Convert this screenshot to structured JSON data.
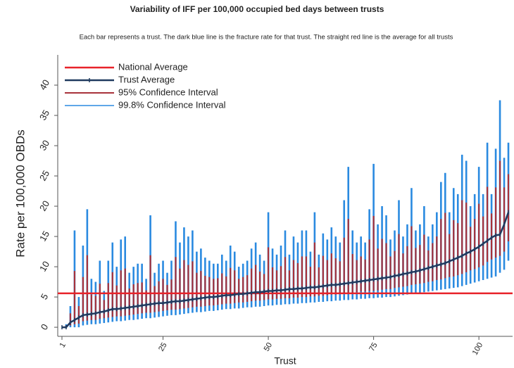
{
  "chart_data": {
    "type": "interval",
    "title": "Variability of IFF per 100,000 occupied bed days between trusts",
    "subtitle": "Each bar represents a trust. The dark blue line is the  fracture rate for that trust. The straight red line is the average for all trusts",
    "x_label": "Trust",
    "y_label": "Rate per 100,000 OBDs",
    "x": [
      1,
      2,
      3,
      4,
      5,
      6,
      7,
      8,
      9,
      10,
      11,
      12,
      13,
      14,
      15,
      16,
      17,
      18,
      19,
      20,
      21,
      22,
      23,
      24,
      25,
      26,
      27,
      28,
      29,
      30,
      31,
      32,
      33,
      34,
      35,
      36,
      37,
      38,
      39,
      40,
      41,
      42,
      43,
      44,
      45,
      46,
      47,
      48,
      49,
      50,
      51,
      52,
      53,
      54,
      55,
      56,
      57,
      58,
      59,
      60,
      61,
      62,
      63,
      64,
      65,
      66,
      67,
      68,
      69,
      70,
      71,
      72,
      73,
      74,
      75,
      76,
      77,
      78,
      79,
      80,
      81,
      82,
      83,
      84,
      85,
      86,
      87,
      88,
      89,
      90,
      91,
      92,
      93,
      94,
      95,
      96,
      97,
      98,
      99,
      100,
      101,
      102,
      103,
      104,
      105,
      106,
      107
    ],
    "xlim": [
      0,
      108
    ],
    "xticks": [
      1,
      25,
      50,
      75,
      100
    ],
    "ylim": [
      -1.5,
      45
    ],
    "yticks": [
      0,
      5,
      10,
      15,
      20,
      25,
      30,
      35,
      40
    ],
    "series": [
      {
        "name": "National Average",
        "color": "#e8232a",
        "value": 5.6
      },
      {
        "name": "Trust Average",
        "color": "#1f3a5f",
        "values": [
          0,
          0,
          0.8,
          1.2,
          1.6,
          2.0,
          2.1,
          2.2,
          2.3,
          2.5,
          2.6,
          2.8,
          3.0,
          3.0,
          3.1,
          3.2,
          3.3,
          3.4,
          3.5,
          3.6,
          3.7,
          3.8,
          3.9,
          4.0,
          4.0,
          4.1,
          4.2,
          4.3,
          4.3,
          4.4,
          4.5,
          4.6,
          4.7,
          4.8,
          4.9,
          5.0,
          5.0,
          5.1,
          5.2,
          5.3,
          5.3,
          5.4,
          5.5,
          5.5,
          5.6,
          5.7,
          5.8,
          5.8,
          5.9,
          6.0,
          6.0,
          6.1,
          6.1,
          6.2,
          6.3,
          6.3,
          6.4,
          6.4,
          6.5,
          6.6,
          6.6,
          6.7,
          6.8,
          6.9,
          7.0,
          7.0,
          7.1,
          7.2,
          7.3,
          7.4,
          7.5,
          7.6,
          7.7,
          7.8,
          7.9,
          8.0,
          8.1,
          8.2,
          8.3,
          8.5,
          8.6,
          8.8,
          8.9,
          9.1,
          9.2,
          9.4,
          9.6,
          9.8,
          10.0,
          10.2,
          10.4,
          10.6,
          10.9,
          11.2,
          11.5,
          11.8,
          12.2,
          12.5,
          12.9,
          13.3,
          13.8,
          14.3,
          14.8,
          15.2,
          15.3,
          17.0,
          19.0
        ]
      },
      {
        "name": "95% Confidence Interval",
        "color": "#a8323a",
        "low": [
          0,
          0,
          0.3,
          0.5,
          0.6,
          1.0,
          1.1,
          1.2,
          1.2,
          1.4,
          1.5,
          1.6,
          1.7,
          1.8,
          1.8,
          1.9,
          2.0,
          2.1,
          2.2,
          2.3,
          2.4,
          2.4,
          2.5,
          2.6,
          2.7,
          2.8,
          2.9,
          2.9,
          3.0,
          3.1,
          3.2,
          3.3,
          3.4,
          3.4,
          3.5,
          3.6,
          3.6,
          3.7,
          3.8,
          3.9,
          3.9,
          4.0,
          4.1,
          4.1,
          4.2,
          4.3,
          4.4,
          4.4,
          4.5,
          4.6,
          4.6,
          4.7,
          4.7,
          4.8,
          4.8,
          4.9,
          4.9,
          5.0,
          5.0,
          5.1,
          5.1,
          5.2,
          5.2,
          5.3,
          5.4,
          5.4,
          5.5,
          5.6,
          5.6,
          5.7,
          5.8,
          5.9,
          5.9,
          6.0,
          6.0,
          6.1,
          6.2,
          6.3,
          6.3,
          6.5,
          6.6,
          6.7,
          6.8,
          7.0,
          7.1,
          7.2,
          7.3,
          7.5,
          7.6,
          7.8,
          7.9,
          8.1,
          8.3,
          8.4,
          8.6,
          8.8,
          9.1,
          9.4,
          9.6,
          9.9,
          10.2,
          10.8,
          11.2,
          11.5,
          11.8,
          12.5,
          14.2
        ],
        "high": [
          0,
          0.3,
          2.3,
          9.3,
          3.5,
          8.3,
          11.9,
          5.4,
          5.2,
          7.2,
          4.5,
          7.3,
          9.1,
          6.9,
          9.4,
          9.7,
          6.4,
          7.1,
          7.3,
          7.4,
          6.1,
          11.9,
          6.8,
          7.6,
          8.0,
          7.0,
          7.9,
          11.6,
          9.7,
          11.1,
          10.3,
          10.9,
          9.0,
          9.3,
          8.5,
          8.3,
          8.0,
          8.1,
          8.9,
          8.4,
          9.8,
          9.4,
          8.0,
          8.3,
          8.6,
          9.7,
          10.3,
          9.2,
          8.8,
          13.2,
          9.9,
          9.4,
          10.1,
          11.6,
          9.4,
          11.1,
          10.6,
          11.7,
          11.7,
          10.0,
          14.0,
          9.9,
          11.8,
          11.1,
          12.2,
          11.4,
          10.9,
          14.8,
          17.9,
          12.1,
          11.1,
          11.7,
          11.2,
          14.5,
          18.4,
          13.0,
          14.6,
          13.9,
          11.7,
          12.6,
          15.4,
          12.2,
          13.4,
          16.7,
          13.1,
          13.6,
          15.3,
          12.7,
          13.9,
          15.0,
          17.9,
          18.9,
          15.4,
          17.7,
          17.2,
          21.0,
          20.6,
          16.6,
          17.9,
          20.4,
          18.3,
          23.2,
          18.8,
          23.1,
          27.5,
          23.1,
          25.3
        ]
      },
      {
        "name": "99.8% Confidence Interval",
        "color": "#2a8ae0",
        "low": [
          0,
          0,
          0,
          0,
          0,
          0.3,
          0.4,
          0.5,
          0.5,
          0.6,
          0.7,
          0.8,
          0.9,
          1,
          1,
          1.1,
          1.2,
          1.2,
          1.3,
          1.4,
          1.5,
          1.5,
          1.6,
          1.7,
          1.8,
          1.9,
          2,
          2,
          2.1,
          2.2,
          2.3,
          2.4,
          2.5,
          2.5,
          2.6,
          2.7,
          2.7,
          2.8,
          2.9,
          3,
          3,
          3.1,
          3.1,
          3.2,
          3.3,
          3.3,
          3.4,
          3.4,
          3.5,
          3.6,
          3.6,
          3.7,
          3.7,
          3.8,
          3.8,
          3.9,
          3.9,
          4,
          4,
          4.1,
          4.1,
          4.2,
          4.2,
          4.3,
          4.3,
          4.4,
          4.4,
          4.5,
          4.5,
          4.6,
          4.6,
          4.7,
          4.7,
          4.8,
          4.8,
          4.9,
          4.9,
          5,
          5,
          5.1,
          5.2,
          5.3,
          5.4,
          5.5,
          5.6,
          5.7,
          5.8,
          5.9,
          6,
          6.1,
          6.2,
          6.3,
          6.4,
          6.5,
          6.6,
          6.8,
          7,
          7.2,
          7.4,
          7.6,
          7.8,
          8,
          8.2,
          8.4,
          9,
          9.5,
          11
        ],
        "high": [
          0,
          0.5,
          3.5,
          16,
          5,
          13.5,
          19.5,
          8,
          7.5,
          11,
          6,
          11,
          14,
          10,
          14.5,
          15,
          9,
          10,
          10.5,
          10.5,
          8,
          18.5,
          9,
          10.5,
          11,
          9,
          11,
          17.5,
          14,
          16.5,
          15,
          16,
          12.5,
          13,
          11.5,
          11,
          10.5,
          10.5,
          12,
          11,
          13.5,
          12.5,
          10,
          10.5,
          11,
          13,
          14,
          12,
          11,
          19,
          13,
          12,
          13.5,
          16,
          12,
          15,
          14,
          16,
          16,
          12.5,
          19,
          12,
          15.5,
          14.5,
          16.5,
          15,
          14,
          21,
          26.5,
          16,
          14,
          15,
          14,
          19.5,
          27,
          17,
          20,
          18.5,
          14.5,
          16,
          21,
          15,
          17,
          23,
          16,
          17,
          20,
          15,
          17,
          19,
          24,
          25.5,
          19,
          23,
          22,
          28.5,
          27.5,
          20,
          22,
          26.5,
          22,
          30.5,
          22,
          29.5,
          37.5,
          28,
          30.5
        ]
      }
    ]
  }
}
